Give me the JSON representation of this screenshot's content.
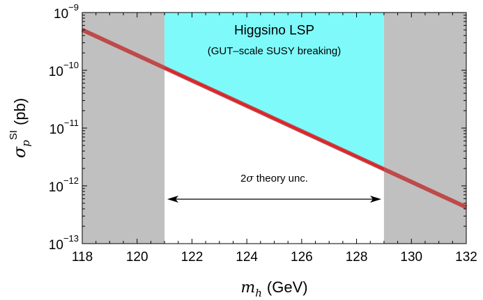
{
  "chart_data": {
    "type": "line",
    "xlabel": {
      "var": "m",
      "sub": "h",
      "unit": "(GeV)"
    },
    "ylabel": {
      "var": "σ",
      "sub": "p",
      "sup": "SI",
      "unit": "(pb)"
    },
    "xlim": [
      118,
      132
    ],
    "ylim_log10": [
      -13,
      -9
    ],
    "y_scale": "log",
    "x_ticks": [
      118,
      120,
      122,
      124,
      126,
      128,
      130,
      132
    ],
    "y_ticks": [
      {
        "base": "10",
        "exp": "−13",
        "value": -13
      },
      {
        "base": "10",
        "exp": "−12",
        "value": -12
      },
      {
        "base": "10",
        "exp": "−11",
        "value": -11
      },
      {
        "base": "10",
        "exp": "−10",
        "value": -10
      },
      {
        "base": "10",
        "exp": "−9",
        "value": -9
      }
    ],
    "excluded_regions": [
      {
        "x": [
          118,
          121
        ],
        "color": "#c0c0c0"
      },
      {
        "x": [
          129,
          132
        ],
        "color": "#c0c0c0"
      }
    ],
    "allowed_region": {
      "x": [
        121,
        129
      ],
      "color": "#7ffafa",
      "line1": "Higgsino LSP",
      "line2": "(GUT–scale SUSY breaking)"
    },
    "series": [
      {
        "x": [
          118,
          132
        ],
        "log10_y": [
          -9.3,
          -12.37
        ],
        "color": "#bf4a4a",
        "highlight_range": [
          121,
          129
        ],
        "highlight_color": "#e81c24"
      }
    ],
    "annotation": {
      "prefix": "2",
      "symbol": "σ",
      "text": " theory unc.",
      "x_from": 121.1,
      "x_to": 128.9,
      "arrow_log10_y": -12.23
    },
    "grid": false
  }
}
